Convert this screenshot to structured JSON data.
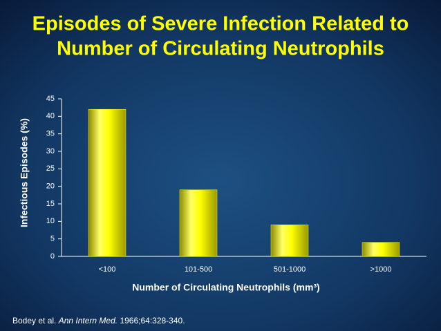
{
  "chart_data": {
    "type": "bar",
    "title": [
      "Episodes of Severe Infection Related to",
      "Number of Circulating Neutrophils"
    ],
    "y_label": "Infectious Episodes (%)",
    "x_label": "Number of Circulating Neutrophils (mm³)",
    "categories": [
      "<100",
      "101-500",
      "501-1000",
      ">1000"
    ],
    "values": [
      42,
      19,
      9,
      4
    ],
    "color": "#ffff00",
    "ylim": [
      0,
      45
    ],
    "yticks": [
      0,
      5,
      10,
      15,
      20,
      25,
      30,
      35,
      40,
      45
    ],
    "grid": false,
    "citation": [
      "Bodey et al. ",
      "Ann Intern Med.",
      " 1966;64:328-340."
    ]
  }
}
